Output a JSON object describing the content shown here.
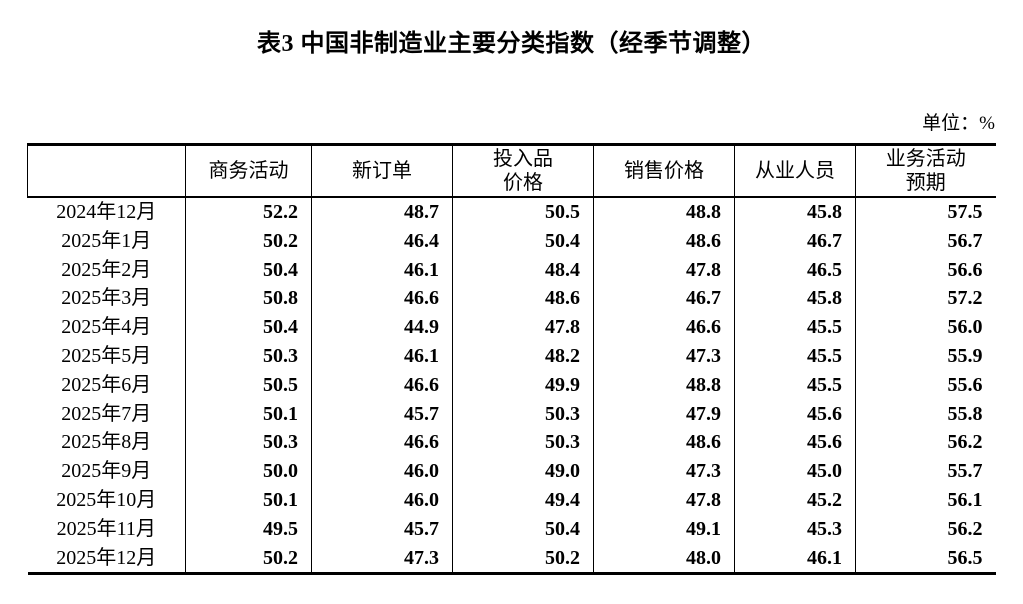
{
  "title": "表3 中国非制造业主要分类指数（经季节调整）",
  "unit_label": "单位：%",
  "colors": {
    "text": "#000000",
    "border": "#000000",
    "background": "#ffffff"
  },
  "table": {
    "columns": [
      "商务活动",
      "新订单",
      "投入品\n价格",
      "销售价格",
      "从业人员",
      "业务活动\n预期"
    ],
    "rows": [
      {
        "label": "2024年12月",
        "values": [
          "52.2",
          "48.7",
          "50.5",
          "48.8",
          "45.8",
          "57.5"
        ]
      },
      {
        "label": "2025年1月",
        "values": [
          "50.2",
          "46.4",
          "50.4",
          "48.6",
          "46.7",
          "56.7"
        ]
      },
      {
        "label": "2025年2月",
        "values": [
          "50.4",
          "46.1",
          "48.4",
          "47.8",
          "46.5",
          "56.6"
        ]
      },
      {
        "label": "2025年3月",
        "values": [
          "50.8",
          "46.6",
          "48.6",
          "46.7",
          "45.8",
          "57.2"
        ]
      },
      {
        "label": "2025年4月",
        "values": [
          "50.4",
          "44.9",
          "47.8",
          "46.6",
          "45.5",
          "56.0"
        ]
      },
      {
        "label": "2025年5月",
        "values": [
          "50.3",
          "46.1",
          "48.2",
          "47.3",
          "45.5",
          "55.9"
        ]
      },
      {
        "label": "2025年6月",
        "values": [
          "50.5",
          "46.6",
          "49.9",
          "48.8",
          "45.5",
          "55.6"
        ]
      },
      {
        "label": "2025年7月",
        "values": [
          "50.1",
          "45.7",
          "50.3",
          "47.9",
          "45.6",
          "55.8"
        ]
      },
      {
        "label": "2025年8月",
        "values": [
          "50.3",
          "46.6",
          "50.3",
          "48.6",
          "45.6",
          "56.2"
        ]
      },
      {
        "label": "2025年9月",
        "values": [
          "50.0",
          "46.0",
          "49.0",
          "47.3",
          "45.0",
          "55.7"
        ]
      },
      {
        "label": "2025年10月",
        "values": [
          "50.1",
          "46.0",
          "49.4",
          "47.8",
          "45.2",
          "56.1"
        ]
      },
      {
        "label": "2025年11月",
        "values": [
          "49.5",
          "45.7",
          "50.4",
          "49.1",
          "45.3",
          "56.2"
        ]
      },
      {
        "label": "2025年12月",
        "values": [
          "50.2",
          "47.3",
          "50.2",
          "48.0",
          "46.1",
          "56.5"
        ]
      }
    ]
  }
}
